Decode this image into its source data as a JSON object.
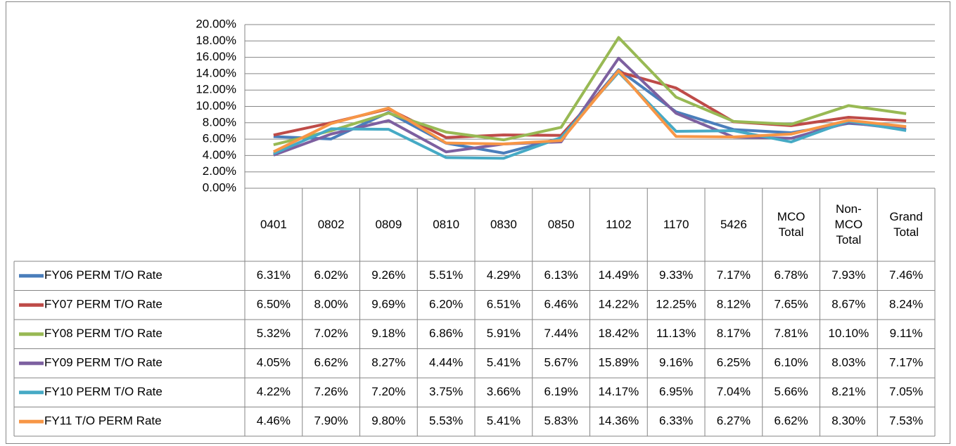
{
  "chart_data": {
    "type": "line",
    "categories": [
      "0401",
      "0802",
      "0809",
      "0810",
      "0830",
      "0850",
      "1102",
      "1170",
      "5426",
      "MCO Total",
      "Non-MCO Total",
      "Grand Total"
    ],
    "ylim": [
      0,
      20
    ],
    "yticks": [
      {
        "value": 0,
        "label": "0.00%"
      },
      {
        "value": 2,
        "label": "2.00%"
      },
      {
        "value": 4,
        "label": "4.00%"
      },
      {
        "value": 6,
        "label": "6.00%"
      },
      {
        "value": 8,
        "label": "8.00%"
      },
      {
        "value": 10,
        "label": "10.00%"
      },
      {
        "value": 12,
        "label": "12.00%"
      },
      {
        "value": 14,
        "label": "14.00%"
      },
      {
        "value": 16,
        "label": "16.00%"
      },
      {
        "value": 18,
        "label": "18.00%"
      },
      {
        "value": 20,
        "label": "20.00%"
      }
    ],
    "grid": true,
    "series": [
      {
        "name": "FY06 PERM T/O Rate",
        "color": "#4a7ebb",
        "values": [
          6.31,
          6.02,
          9.26,
          5.51,
          4.29,
          6.13,
          14.49,
          9.33,
          7.17,
          6.78,
          7.93,
          7.46
        ],
        "value_labels": [
          "6.31%",
          "6.02%",
          "9.26%",
          "5.51%",
          "4.29%",
          "6.13%",
          "14.49%",
          "9.33%",
          "7.17%",
          "6.78%",
          "7.93%",
          "7.46%"
        ]
      },
      {
        "name": "FY07 PERM T/O Rate",
        "color": "#be4b48",
        "values": [
          6.5,
          8.0,
          9.69,
          6.2,
          6.51,
          6.46,
          14.22,
          12.25,
          8.12,
          7.65,
          8.67,
          8.24
        ],
        "value_labels": [
          "6.50%",
          "8.00%",
          "9.69%",
          "6.20%",
          "6.51%",
          "6.46%",
          "14.22%",
          "12.25%",
          "8.12%",
          "7.65%",
          "8.67%",
          "8.24%"
        ]
      },
      {
        "name": "FY08 PERM T/O Rate",
        "color": "#98b954",
        "values": [
          5.32,
          7.02,
          9.18,
          6.86,
          5.91,
          7.44,
          18.42,
          11.13,
          8.17,
          7.81,
          10.1,
          9.11
        ],
        "value_labels": [
          "5.32%",
          "7.02%",
          "9.18%",
          "6.86%",
          "5.91%",
          "7.44%",
          "18.42%",
          "11.13%",
          "8.17%",
          "7.81%",
          "10.10%",
          "9.11%"
        ]
      },
      {
        "name": "FY09 PERM T/O Rate",
        "color": "#7d60a0",
        "values": [
          4.05,
          6.62,
          8.27,
          4.44,
          5.41,
          5.67,
          15.89,
          9.16,
          6.25,
          6.1,
          8.03,
          7.17
        ],
        "value_labels": [
          "4.05%",
          "6.62%",
          "8.27%",
          "4.44%",
          "5.41%",
          "5.67%",
          "15.89%",
          "9.16%",
          "6.25%",
          "6.10%",
          "8.03%",
          "7.17%"
        ]
      },
      {
        "name": "FY10 PERM T/O Rate",
        "color": "#46aac5",
        "values": [
          4.22,
          7.26,
          7.2,
          3.75,
          3.66,
          6.19,
          14.17,
          6.95,
          7.04,
          5.66,
          8.21,
          7.05
        ],
        "value_labels": [
          "4.22%",
          "7.26%",
          "7.20%",
          "3.75%",
          "3.66%",
          "6.19%",
          "14.17%",
          "6.95%",
          "7.04%",
          "5.66%",
          "8.21%",
          "7.05%"
        ]
      },
      {
        "name": "FY11 T/O PERM Rate",
        "color": "#f79646",
        "values": [
          4.46,
          7.9,
          9.8,
          5.53,
          5.41,
          5.83,
          14.36,
          6.33,
          6.27,
          6.62,
          8.3,
          7.53
        ],
        "value_labels": [
          "4.46%",
          "7.90%",
          "9.80%",
          "5.53%",
          "5.41%",
          "5.83%",
          "14.36%",
          "6.33%",
          "6.27%",
          "6.62%",
          "8.30%",
          "7.53%"
        ]
      }
    ]
  }
}
